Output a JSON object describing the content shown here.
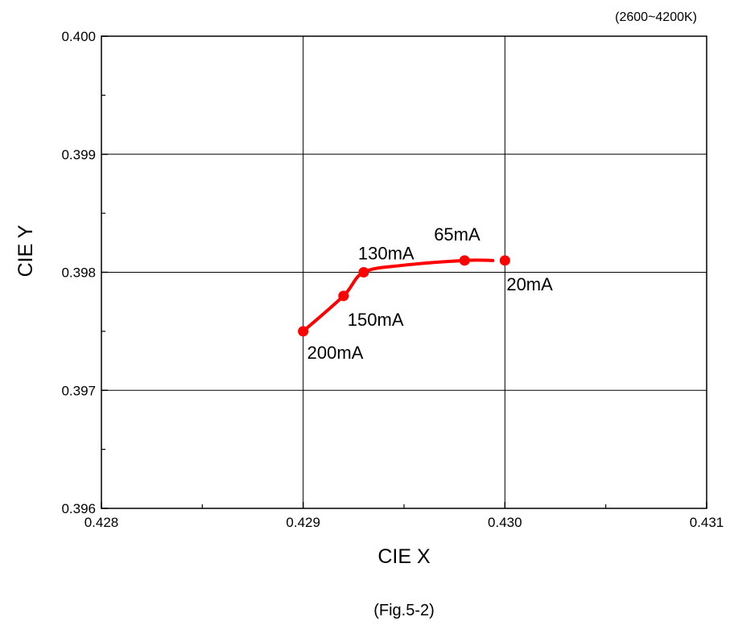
{
  "chart_data": {
    "type": "line",
    "note": "(2600~4200K)",
    "xlabel": "CIE X",
    "ylabel": "CIE Y",
    "caption": "(Fig.5-2)",
    "xlim": [
      0.428,
      0.431
    ],
    "ylim": [
      0.396,
      0.4
    ],
    "x_ticks": [
      "0.428",
      "0.429",
      "0.430",
      "0.431"
    ],
    "y_ticks": [
      "0.396",
      "0.397",
      "0.398",
      "0.399",
      "0.400"
    ],
    "grid": true,
    "line_color": "#ff0000",
    "points": [
      {
        "x": 0.429,
        "y": 0.3975,
        "label": "200mA"
      },
      {
        "x": 0.4292,
        "y": 0.3978,
        "label": "150mA"
      },
      {
        "x": 0.4293,
        "y": 0.398,
        "label": "130mA"
      },
      {
        "x": 0.4298,
        "y": 0.3981,
        "label": "65mA"
      },
      {
        "x": 0.43,
        "y": 0.3981,
        "label": "20mA"
      }
    ],
    "curve": [
      {
        "x": 0.429,
        "y": 0.3975
      },
      {
        "x": 0.4292,
        "y": 0.3978
      },
      {
        "x": 0.4293,
        "y": 0.398
      },
      {
        "x": 0.4295,
        "y": 0.39806
      },
      {
        "x": 0.4298,
        "y": 0.3981
      },
      {
        "x": 0.42994,
        "y": 0.3981
      }
    ]
  }
}
